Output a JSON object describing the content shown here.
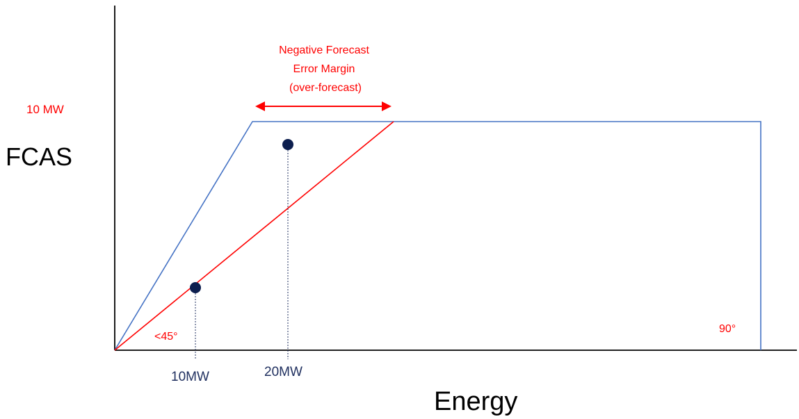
{
  "labels": {
    "y_axis": "FCAS",
    "x_axis": "Energy",
    "top_value": "10 MW",
    "tick_10": "10MW",
    "tick_20": "20MW",
    "angle_low": "<45°",
    "angle_right": "90°",
    "margin_line1": "Negative Forecast",
    "margin_line2": "Error Margin",
    "margin_line3": "(over-forecast)"
  },
  "colors": {
    "axis": "#000000",
    "blue_envelope": "#4472c4",
    "red_line": "#ff0000",
    "red_text": "#ff0000",
    "point": "#0d1f4f",
    "tick_text": "#1f2f5f",
    "dashed": "#1f2f5f"
  }
}
